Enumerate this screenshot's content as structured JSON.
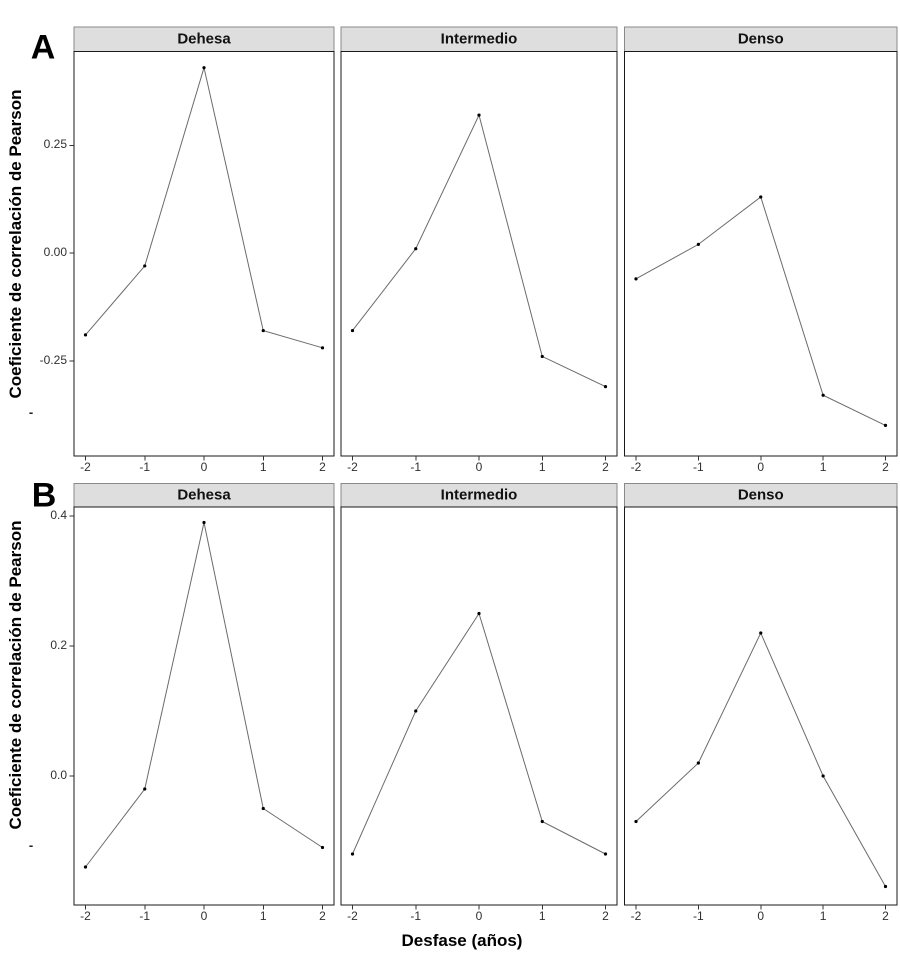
{
  "figure_kind": "faceted line plots (cross-correlation by woodland density), two rows A and B",
  "colors": {
    "background": "#ffffff",
    "strip_background": "#dedede",
    "strip_border": "#8a8a8a",
    "panel_border": "#1a1a1a",
    "line": "#6b6b6b",
    "point": "#000000",
    "tick": "#333333"
  },
  "chart_data": [
    {
      "panel": "A",
      "type": "line",
      "x": [
        -2,
        -1,
        0,
        1,
        2
      ],
      "xlabel": "Desfase (años)",
      "ylabel": "Coeficiente de correlación de Pearson",
      "ylim": [
        -0.47,
        0.47
      ],
      "yticks": [
        0.25,
        0.0,
        -0.25
      ],
      "ytick_labels": [
        "0.25",
        "0.00",
        "-0.25"
      ],
      "clipped_axis_mark": "-",
      "grid": false,
      "legend": false,
      "facets": [
        {
          "name": "Dehesa",
          "values": [
            -0.19,
            -0.03,
            0.43,
            -0.18,
            -0.22
          ]
        },
        {
          "name": "Intermedio",
          "values": [
            -0.18,
            0.01,
            0.32,
            -0.24,
            -0.31
          ]
        },
        {
          "name": "Denso",
          "values": [
            -0.06,
            0.02,
            0.13,
            -0.33,
            -0.4
          ]
        }
      ]
    },
    {
      "panel": "B",
      "type": "line",
      "x": [
        -2,
        -1,
        0,
        1,
        2
      ],
      "xlabel": "Desfase (años)",
      "ylabel": "Coeficiente de correlación de Pearson",
      "ylim": [
        -0.2,
        0.41
      ],
      "yticks": [
        0.4,
        0.2,
        0.0
      ],
      "ytick_labels": [
        "0.4",
        "0.2",
        "0.0"
      ],
      "clipped_axis_mark": "-",
      "grid": false,
      "legend": false,
      "facets": [
        {
          "name": "Dehesa",
          "values": [
            -0.14,
            -0.02,
            0.39,
            -0.05,
            -0.11
          ]
        },
        {
          "name": "Intermedio",
          "values": [
            -0.12,
            0.1,
            0.25,
            -0.07,
            -0.12
          ]
        },
        {
          "name": "Denso",
          "values": [
            -0.07,
            0.02,
            0.22,
            0.0,
            -0.17
          ]
        }
      ]
    }
  ]
}
